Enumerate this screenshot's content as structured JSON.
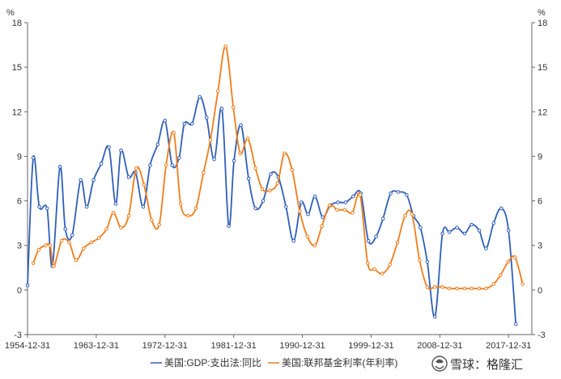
{
  "chart_data": {
    "type": "line",
    "yunit_left": "%",
    "yunit_right": "%",
    "ylim": [
      -3,
      18
    ],
    "yticks": [
      -3,
      0,
      3,
      6,
      9,
      12,
      15,
      18
    ],
    "xlim": [
      1954.95,
      2021.0
    ],
    "xtick_labels": [
      {
        "year": 1954.95,
        "label": "1954-12-31"
      },
      {
        "year": 1963.95,
        "label": "1963-12-31"
      },
      {
        "year": 1972.95,
        "label": "1972-12-31"
      },
      {
        "year": 1981.95,
        "label": "1981-12-31"
      },
      {
        "year": 1990.95,
        "label": "1990-12-31"
      },
      {
        "year": 1999.95,
        "label": "1999-12-31"
      },
      {
        "year": 2008.95,
        "label": "2008-12-31"
      },
      {
        "year": 2017.95,
        "label": "2017-12-31"
      }
    ],
    "series": [
      {
        "name": "美国:GDP:支出法:同比",
        "color": "#2f5fb8",
        "points": [
          [
            1954.95,
            0.3
          ],
          [
            1955.7,
            8.9
          ],
          [
            1956.5,
            5.6
          ],
          [
            1957.5,
            5.5
          ],
          [
            1958.2,
            1.6
          ],
          [
            1959.2,
            8.3
          ],
          [
            1959.9,
            4.1
          ],
          [
            1960.8,
            3.7
          ],
          [
            1961.9,
            7.4
          ],
          [
            1962.7,
            5.6
          ],
          [
            1963.6,
            7.4
          ],
          [
            1964.6,
            8.5
          ],
          [
            1965.6,
            9.6
          ],
          [
            1966.5,
            5.8
          ],
          [
            1967.2,
            9.4
          ],
          [
            1968.2,
            7.6
          ],
          [
            1969.1,
            7.9
          ],
          [
            1970.1,
            5.6
          ],
          [
            1971.0,
            8.4
          ],
          [
            1972.0,
            9.8
          ],
          [
            1972.95,
            11.4
          ],
          [
            1973.9,
            8.4
          ],
          [
            1974.8,
            8.9
          ],
          [
            1975.5,
            11.2
          ],
          [
            1976.5,
            11.2
          ],
          [
            1977.5,
            13.0
          ],
          [
            1978.4,
            11.6
          ],
          [
            1979.4,
            8.8
          ],
          [
            1980.4,
            12.2
          ],
          [
            1981.3,
            4.3
          ],
          [
            1982.0,
            8.7
          ],
          [
            1982.9,
            11.1
          ],
          [
            1983.9,
            7.5
          ],
          [
            1984.8,
            5.5
          ],
          [
            1985.8,
            6.0
          ],
          [
            1986.8,
            7.8
          ],
          [
            1987.8,
            7.6
          ],
          [
            1988.8,
            5.6
          ],
          [
            1989.8,
            3.3
          ],
          [
            1990.8,
            5.9
          ],
          [
            1991.7,
            5.1
          ],
          [
            1992.6,
            6.3
          ],
          [
            1993.6,
            4.9
          ],
          [
            1994.6,
            5.7
          ],
          [
            1995.6,
            5.9
          ],
          [
            1996.6,
            5.9
          ],
          [
            1997.6,
            6.3
          ],
          [
            1998.6,
            6.5
          ],
          [
            1999.6,
            3.3
          ],
          [
            2000.6,
            3.6
          ],
          [
            2001.5,
            4.8
          ],
          [
            2002.5,
            6.5
          ],
          [
            2003.5,
            6.6
          ],
          [
            2004.6,
            6.4
          ],
          [
            2005.5,
            5.0
          ],
          [
            2006.4,
            4.2
          ],
          [
            2007.3,
            1.9
          ],
          [
            2008.3,
            -1.8
          ],
          [
            2009.3,
            3.8
          ],
          [
            2010.2,
            3.9
          ],
          [
            2011.2,
            4.2
          ],
          [
            2012.2,
            3.8
          ],
          [
            2013.1,
            4.4
          ],
          [
            2014.1,
            4.0
          ],
          [
            2015.0,
            2.8
          ],
          [
            2016.0,
            4.5
          ],
          [
            2017.0,
            5.5
          ],
          [
            2017.95,
            4.0
          ],
          [
            2018.9,
            -2.3
          ]
        ]
      },
      {
        "name": "美国:联邦基金利率(年利率)",
        "color": "#f07d1a",
        "points": [
          [
            1955.7,
            1.8
          ],
          [
            1956.4,
            2.7
          ],
          [
            1957.3,
            3.0
          ],
          [
            1957.9,
            3.0
          ],
          [
            1958.4,
            1.6
          ],
          [
            1959.4,
            3.3
          ],
          [
            1960.4,
            3.2
          ],
          [
            1961.3,
            2.0
          ],
          [
            1962.3,
            2.8
          ],
          [
            1963.3,
            3.2
          ],
          [
            1964.3,
            3.5
          ],
          [
            1965.3,
            4.1
          ],
          [
            1966.2,
            5.2
          ],
          [
            1967.2,
            4.2
          ],
          [
            1968.2,
            5.0
          ],
          [
            1969.2,
            8.2
          ],
          [
            1970.2,
            7.1
          ],
          [
            1971.2,
            4.7
          ],
          [
            1972.2,
            4.4
          ],
          [
            1973.1,
            8.4
          ],
          [
            1974.1,
            10.6
          ],
          [
            1975.0,
            5.8
          ],
          [
            1976.0,
            5.0
          ],
          [
            1977.0,
            5.5
          ],
          [
            1978.0,
            7.9
          ],
          [
            1978.9,
            10.1
          ],
          [
            1979.9,
            13.4
          ],
          [
            1980.9,
            16.4
          ],
          [
            1981.9,
            12.3
          ],
          [
            1982.8,
            9.2
          ],
          [
            1983.8,
            10.2
          ],
          [
            1984.8,
            8.2
          ],
          [
            1985.7,
            6.8
          ],
          [
            1986.7,
            6.7
          ],
          [
            1987.7,
            7.2
          ],
          [
            1988.6,
            9.2
          ],
          [
            1989.6,
            8.1
          ],
          [
            1990.6,
            5.3
          ],
          [
            1991.6,
            3.6
          ],
          [
            1992.6,
            3.0
          ],
          [
            1993.5,
            4.3
          ],
          [
            1994.5,
            5.7
          ],
          [
            1995.5,
            5.4
          ],
          [
            1996.5,
            5.4
          ],
          [
            1997.5,
            5.2
          ],
          [
            1998.5,
            6.4
          ],
          [
            1999.5,
            1.8
          ],
          [
            2000.4,
            1.4
          ],
          [
            2001.4,
            1.1
          ],
          [
            2002.4,
            1.7
          ],
          [
            2003.4,
            3.2
          ],
          [
            2004.4,
            5.0
          ],
          [
            2005.3,
            5.1
          ],
          [
            2006.3,
            2.0
          ],
          [
            2007.3,
            0.2
          ],
          [
            2008.3,
            0.2
          ],
          [
            2009.3,
            0.2
          ],
          [
            2010.2,
            0.1
          ],
          [
            2011.2,
            0.1
          ],
          [
            2012.2,
            0.1
          ],
          [
            2013.1,
            0.1
          ],
          [
            2014.1,
            0.1
          ],
          [
            2015.0,
            0.1
          ],
          [
            2016.0,
            0.4
          ],
          [
            2016.9,
            1.0
          ],
          [
            2017.9,
            1.9
          ],
          [
            2018.8,
            2.2
          ],
          [
            2019.8,
            0.4
          ]
        ]
      }
    ]
  },
  "watermark": {
    "brand": "雪球",
    "separator": "：",
    "source": "格隆汇"
  }
}
